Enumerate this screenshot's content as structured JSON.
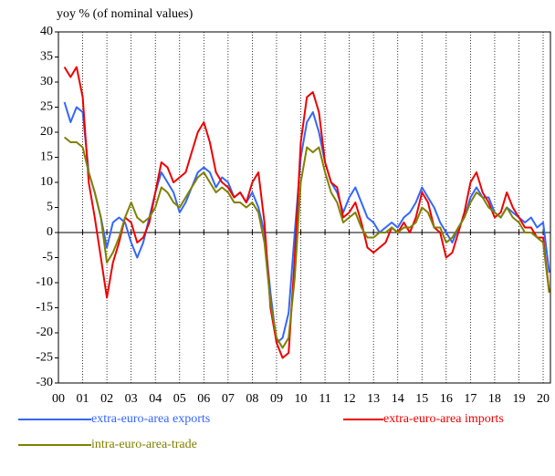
{
  "chart_data": {
    "type": "line",
    "y_label": "yoy % (of nominal values)",
    "x": [
      0.25,
      0.5,
      0.75,
      1,
      1.25,
      1.5,
      1.75,
      2,
      2.25,
      2.5,
      2.75,
      3,
      3.25,
      3.5,
      3.75,
      4,
      4.25,
      4.5,
      4.75,
      5,
      5.25,
      5.5,
      5.75,
      6,
      6.25,
      6.5,
      6.75,
      7,
      7.25,
      7.5,
      7.75,
      8,
      8.25,
      8.5,
      8.75,
      9,
      9.25,
      9.5,
      9.75,
      10,
      10.25,
      10.5,
      10.75,
      11,
      11.25,
      11.5,
      11.75,
      12,
      12.25,
      12.5,
      12.75,
      13,
      13.25,
      13.5,
      13.75,
      14,
      14.25,
      14.5,
      14.75,
      15,
      15.25,
      15.5,
      15.75,
      16,
      16.25,
      16.5,
      16.75,
      17,
      17.25,
      17.5,
      17.75,
      18,
      18.25,
      18.5,
      18.75,
      19,
      19.25,
      19.5,
      19.75,
      20,
      20.25
    ],
    "series": [
      {
        "name": "extra-euro-area exports",
        "color": "#3366ff",
        "values": [
          26,
          22,
          25,
          24,
          12,
          8,
          3,
          -3,
          2,
          3,
          2,
          -2,
          -5,
          -2,
          3,
          8,
          12,
          10,
          8,
          4,
          6,
          9,
          12,
          13,
          12,
          9,
          11,
          10,
          7,
          8,
          6,
          8,
          5,
          0,
          -12,
          -22,
          -21,
          -16,
          0,
          15,
          22,
          24,
          20,
          14,
          10,
          8,
          4,
          7,
          9,
          6,
          3,
          2,
          0,
          1,
          2,
          1,
          3,
          4,
          6,
          9,
          7,
          5,
          2,
          0,
          -2,
          1,
          3,
          7,
          9,
          7,
          7,
          4,
          3,
          5,
          4,
          3,
          2,
          3,
          1,
          2,
          -8
        ]
      },
      {
        "name": "extra-euro-area imports",
        "color": "#ee0000",
        "values": [
          33,
          31,
          33,
          27,
          10,
          3,
          -5,
          -13,
          -6,
          -2,
          3,
          2,
          -2,
          -1,
          2,
          8,
          14,
          13,
          10,
          11,
          12,
          16,
          20,
          22,
          18,
          12,
          10,
          9,
          7,
          8,
          6,
          10,
          12,
          2,
          -15,
          -22,
          -25,
          -24,
          -5,
          18,
          27,
          28,
          24,
          14,
          10,
          9,
          3,
          4,
          6,
          2,
          -3,
          -4,
          -3,
          -2,
          1,
          0,
          2,
          0,
          3,
          8,
          6,
          1,
          0,
          -5,
          -4,
          0,
          4,
          10,
          12,
          8,
          6,
          3,
          4,
          8,
          5,
          3,
          1,
          1,
          -1,
          -1,
          -12
        ]
      },
      {
        "name": "intra-euro-area-trade",
        "color": "#808000",
        "values": [
          19,
          18,
          18,
          17,
          12,
          8,
          3,
          -6,
          -4,
          -1,
          3,
          6,
          3,
          2,
          3,
          5,
          9,
          8,
          6,
          5,
          7,
          9,
          11,
          12,
          10,
          8,
          9,
          8,
          6,
          6,
          5,
          6,
          4,
          -2,
          -14,
          -21,
          -23,
          -21,
          -9,
          10,
          17,
          16,
          17,
          12,
          8,
          6,
          2,
          3,
          4,
          1,
          -1,
          -1,
          0,
          0,
          1,
          0,
          1,
          1,
          2,
          5,
          4,
          1,
          1,
          -2,
          -1,
          1,
          3,
          6,
          8,
          7,
          5,
          4,
          3,
          5,
          3,
          2,
          0,
          0,
          -1,
          -2,
          -12
        ]
      }
    ],
    "xlim": [
      0,
      20.3
    ],
    "xticks": [
      {
        "value": 0,
        "label": "00"
      },
      {
        "value": 1,
        "label": "01"
      },
      {
        "value": 2,
        "label": "02"
      },
      {
        "value": 3,
        "label": "03"
      },
      {
        "value": 4,
        "label": "04"
      },
      {
        "value": 5,
        "label": "05"
      },
      {
        "value": 6,
        "label": "06"
      },
      {
        "value": 7,
        "label": "07"
      },
      {
        "value": 8,
        "label": "08"
      },
      {
        "value": 9,
        "label": "09"
      },
      {
        "value": 10,
        "label": "10"
      },
      {
        "value": 11,
        "label": "11"
      },
      {
        "value": 12,
        "label": "12"
      },
      {
        "value": 13,
        "label": "13"
      },
      {
        "value": 14,
        "label": "14"
      },
      {
        "value": 15,
        "label": "15"
      },
      {
        "value": 16,
        "label": "16"
      },
      {
        "value": 17,
        "label": "17"
      },
      {
        "value": 18,
        "label": "18"
      },
      {
        "value": 19,
        "label": "19"
      },
      {
        "value": 20,
        "label": "20"
      }
    ],
    "ylim": [
      -30,
      40
    ],
    "yticks": [
      -30,
      -25,
      -20,
      -15,
      -10,
      -5,
      0,
      5,
      10,
      15,
      20,
      25,
      30,
      35,
      40
    ],
    "grid": true,
    "legend": "bottom"
  }
}
